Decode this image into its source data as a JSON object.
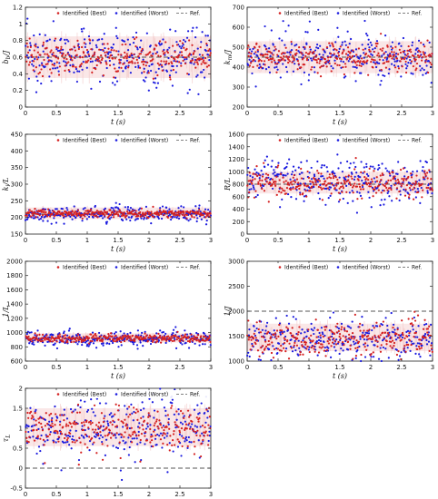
{
  "figure": {
    "legend": {
      "best_label": "Identified (Best)",
      "worst_label": "Identified (Worst)",
      "ref_label": "Ref."
    },
    "colors": {
      "best": "#d42020",
      "worst": "#1a1adf",
      "ref": "#555555",
      "band": "#f3c9c9",
      "axes": "#222222",
      "grid": "#e8e8e8"
    }
  },
  "chart_data": [
    {
      "type": "scatter",
      "ylabel": "b_b/J",
      "xlabel": "t (s)",
      "xlim": [
        0,
        3
      ],
      "ylim": [
        0,
        1.2
      ],
      "xticks": [
        0,
        0.5,
        1,
        1.5,
        2,
        2.5,
        3
      ],
      "yticks": [
        0,
        0.2,
        0.4,
        0.6,
        0.8,
        1,
        1.2
      ],
      "reference": 0.6,
      "series": [
        {
          "name": "Identified (Best)",
          "center": 0.6,
          "spread": 0.1
        },
        {
          "name": "Identified (Worst)",
          "center": 0.6,
          "spread": 0.17
        }
      ],
      "band": [
        0.35,
        0.85
      ],
      "n_points": 300
    },
    {
      "type": "scatter",
      "ylabel": "k_m/J",
      "xlabel": "t (s)",
      "xlim": [
        0,
        3
      ],
      "ylim": [
        200,
        700
      ],
      "xticks": [
        0,
        0.5,
        1,
        1.5,
        2,
        2.5,
        3
      ],
      "yticks": [
        200,
        300,
        400,
        500,
        600,
        700
      ],
      "reference": 450,
      "series": [
        {
          "name": "Identified (Best)",
          "center": 450,
          "spread": 35
        },
        {
          "name": "Identified (Worst)",
          "center": 450,
          "spread": 55
        }
      ],
      "band": [
        370,
        530
      ],
      "n_points": 300
    },
    {
      "type": "scatter",
      "ylabel": "k_i/L",
      "xlabel": "t (s)",
      "xlim": [
        0,
        3
      ],
      "ylim": [
        150,
        450
      ],
      "xticks": [
        0,
        0.5,
        1,
        1.5,
        2,
        2.5,
        3
      ],
      "yticks": [
        150,
        200,
        250,
        300,
        350,
        400,
        450
      ],
      "reference": 210,
      "series": [
        {
          "name": "Identified (Best)",
          "center": 212,
          "spread": 6
        },
        {
          "name": "Identified (Worst)",
          "center": 210,
          "spread": 12
        }
      ],
      "band": [
        195,
        230
      ],
      "n_points": 300
    },
    {
      "type": "scatter",
      "ylabel": "R/L",
      "xlabel": "t (s)",
      "xlim": [
        0,
        3
      ],
      "ylim": [
        0,
        1600
      ],
      "xticks": [
        0,
        0.5,
        1,
        1.5,
        2,
        2.5,
        3
      ],
      "yticks": [
        0,
        200,
        400,
        600,
        800,
        1000,
        1200,
        1400,
        1600
      ],
      "reference": 800,
      "series": [
        {
          "name": "Identified (Best)",
          "center": 820,
          "spread": 110
        },
        {
          "name": "Identified (Worst)",
          "center": 860,
          "spread": 170
        }
      ],
      "band": [
        650,
        1000
      ],
      "n_points": 300
    },
    {
      "type": "scatter",
      "ylabel": "1/L",
      "xlabel": "t (s)",
      "xlim": [
        0,
        3
      ],
      "ylim": [
        600,
        2000
      ],
      "xticks": [
        0,
        0.5,
        1,
        1.5,
        2,
        2.5,
        3
      ],
      "yticks": [
        600,
        800,
        1000,
        1200,
        1400,
        1600,
        1800,
        2000
      ],
      "reference": 920,
      "series": [
        {
          "name": "Identified (Best)",
          "center": 920,
          "spread": 30
        },
        {
          "name": "Identified (Worst)",
          "center": 915,
          "spread": 55
        }
      ],
      "band": [
        860,
        990
      ],
      "n_points": 300
    },
    {
      "type": "scatter",
      "ylabel": "1/J",
      "xlabel": "t (s)",
      "xlim": [
        0,
        3
      ],
      "ylim": [
        1000,
        3000
      ],
      "xticks": [
        0,
        0.5,
        1,
        1.5,
        2,
        2.5,
        3
      ],
      "yticks": [
        1000,
        1500,
        2000,
        2500,
        3000
      ],
      "reference": 2000,
      "series": [
        {
          "name": "Identified (Best)",
          "center": 1450,
          "spread": 170
        },
        {
          "name": "Identified (Worst)",
          "center": 1450,
          "spread": 200
        }
      ],
      "band": [
        1200,
        1750
      ],
      "n_points": 300
    },
    {
      "type": "scatter",
      "ylabel": "τ_L",
      "xlabel": "t (s)",
      "xlim": [
        0,
        3
      ],
      "ylim": [
        -0.5,
        2
      ],
      "xticks": [
        0,
        0.5,
        1,
        1.5,
        2,
        2.5,
        3
      ],
      "yticks": [
        -0.5,
        0,
        0.5,
        1,
        1.5,
        2
      ],
      "reference": 0,
      "series": [
        {
          "name": "Identified (Best)",
          "center": 1.0,
          "spread": 0.3
        },
        {
          "name": "Identified (Worst)",
          "center": 1.0,
          "spread": 0.42
        }
      ],
      "band": [
        0.55,
        1.5
      ],
      "n_points": 300
    }
  ]
}
